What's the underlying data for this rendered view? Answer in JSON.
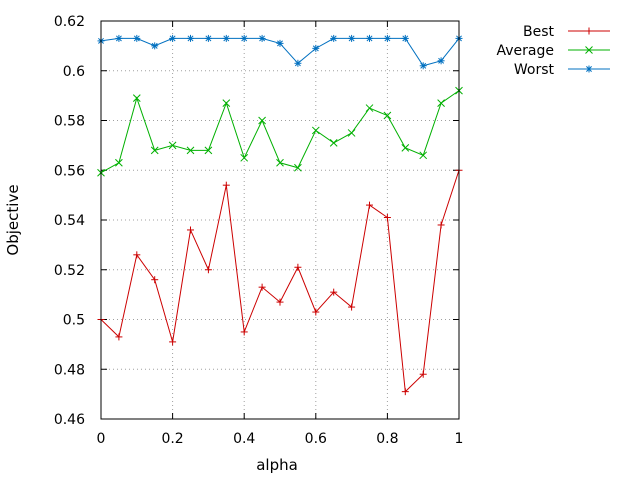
{
  "chart_data": {
    "type": "line",
    "xlabel": "alpha",
    "ylabel": "Objective",
    "xlim": [
      0,
      1
    ],
    "ylim": [
      0.46,
      0.62
    ],
    "xticks": [
      0,
      0.2,
      0.4,
      0.6,
      0.8,
      1
    ],
    "xtick_labels": [
      "0",
      "0.2",
      "0.4",
      "0.6",
      "0.8",
      "1"
    ],
    "yticks": [
      0.46,
      0.48,
      0.5,
      0.52,
      0.54,
      0.56,
      0.58,
      0.6,
      0.62
    ],
    "ytick_labels": [
      "0.46",
      "0.48",
      "0.5",
      "0.52",
      "0.54",
      "0.56",
      "0.58",
      "0.6",
      "0.62"
    ],
    "grid": true,
    "legend_position": "outside-top-right",
    "x": [
      0,
      0.05,
      0.1,
      0.15,
      0.2,
      0.25,
      0.3,
      0.35,
      0.4,
      0.45,
      0.5,
      0.55,
      0.6,
      0.65,
      0.7,
      0.75,
      0.8,
      0.85,
      0.9,
      0.95,
      1
    ],
    "series": [
      {
        "name": "Best",
        "color": "#cc0000",
        "marker": "plus",
        "values": [
          0.5,
          0.493,
          0.526,
          0.516,
          0.491,
          0.536,
          0.52,
          0.554,
          0.495,
          0.513,
          0.507,
          0.521,
          0.503,
          0.511,
          0.505,
          0.546,
          0.541,
          0.471,
          0.478,
          0.538,
          0.56
        ]
      },
      {
        "name": "Average",
        "color": "#00b000",
        "marker": "cross",
        "values": [
          0.559,
          0.563,
          0.589,
          0.568,
          0.57,
          0.568,
          0.568,
          0.587,
          0.565,
          0.58,
          0.563,
          0.561,
          0.576,
          0.571,
          0.575,
          0.585,
          0.582,
          0.569,
          0.566,
          0.587,
          0.592
        ]
      },
      {
        "name": "Worst",
        "color": "#0070c0",
        "marker": "star",
        "values": [
          0.612,
          0.613,
          0.613,
          0.61,
          0.613,
          0.613,
          0.613,
          0.613,
          0.613,
          0.613,
          0.611,
          0.603,
          0.609,
          0.613,
          0.613,
          0.613,
          0.613,
          0.613,
          0.602,
          0.604,
          0.613
        ]
      }
    ]
  }
}
